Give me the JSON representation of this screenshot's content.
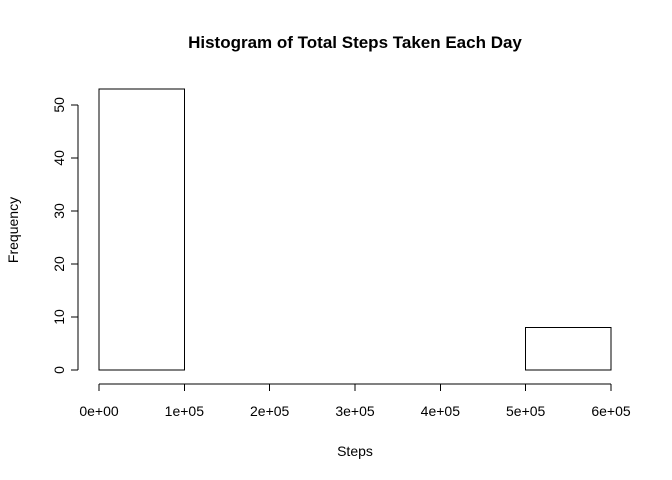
{
  "chart_data": {
    "type": "bar",
    "title": "Histogram of Total Steps Taken Each Day",
    "xlabel": "Steps",
    "ylabel": "Frequency",
    "bins": [
      {
        "from": 0,
        "to": 100000,
        "count": 53
      },
      {
        "from": 100000,
        "to": 200000,
        "count": 0
      },
      {
        "from": 200000,
        "to": 300000,
        "count": 0
      },
      {
        "from": 300000,
        "to": 400000,
        "count": 0
      },
      {
        "from": 400000,
        "to": 500000,
        "count": 0
      },
      {
        "from": 500000,
        "to": 600000,
        "count": 8
      }
    ],
    "xlim": [
      0,
      600000
    ],
    "ylim": [
      0,
      53
    ],
    "x_ticks": [
      0,
      100000,
      200000,
      300000,
      400000,
      500000,
      600000
    ],
    "x_tick_labels": [
      "0e+00",
      "1e+05",
      "2e+05",
      "3e+05",
      "4e+05",
      "5e+05",
      "6e+05"
    ],
    "y_ticks": [
      0,
      10,
      20,
      30,
      40,
      50
    ],
    "y_tick_labels": [
      "0",
      "10",
      "20",
      "30",
      "40",
      "50"
    ],
    "bar_fill": "#ffffff",
    "bar_stroke": "#000000",
    "grid": false,
    "legend": "none"
  }
}
